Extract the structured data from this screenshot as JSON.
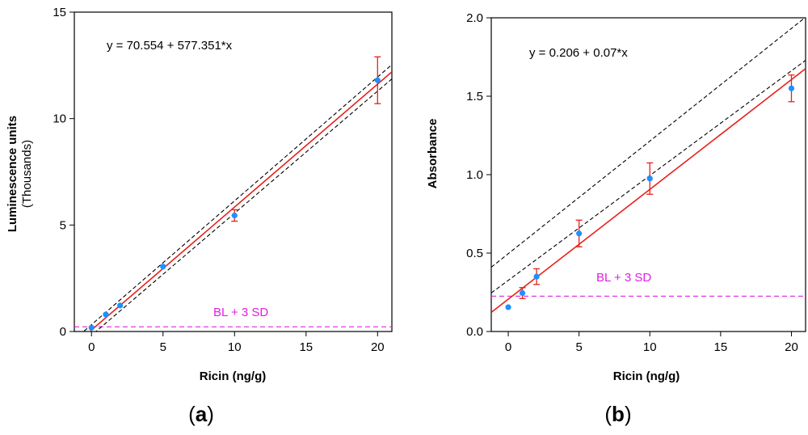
{
  "chart_data": [
    {
      "type": "scatter",
      "panel_label": "a",
      "equation": "y = 70.554 + 577.351*x",
      "xlabel": "Ricin (ng/g)",
      "ylabel": "Luminescence units",
      "ylabel_sub": "(Thousands)",
      "xlim": [
        -1.2,
        21
      ],
      "ylim": [
        0,
        15
      ],
      "xticks": [
        0,
        5,
        10,
        15,
        20
      ],
      "yticks": [
        0,
        5,
        10,
        15
      ],
      "grid": false,
      "points": [
        {
          "x": 0,
          "y": 0.18,
          "err": null
        },
        {
          "x": 1,
          "y": 0.8,
          "err": null
        },
        {
          "x": 2,
          "y": 1.22,
          "err": null
        },
        {
          "x": 5,
          "y": 3.05,
          "err": null
        },
        {
          "x": 10,
          "y": 5.45,
          "err": 0.27
        },
        {
          "x": 20,
          "y": 11.8,
          "err": 1.1
        }
      ],
      "fit": {
        "intercept": 0.070554,
        "slope": 0.577351
      },
      "confidence_band": {
        "upper_offset": 0.25,
        "lower_offset": -0.25,
        "upper_slope": 0.5815,
        "lower_slope": 0.5735
      },
      "baseline": {
        "label": "BL + 3 SD",
        "y": 0.22
      },
      "colors": {
        "points": "#1e90ff",
        "fit": "#e8201a",
        "band": "#000000",
        "baseline": "#e020e0",
        "error_bars": "#e8201a"
      }
    },
    {
      "type": "scatter",
      "panel_label": "b",
      "equation": "y = 0.206 + 0.07*x",
      "xlabel": "Ricin (ng/g)",
      "ylabel": "Absorbance",
      "ylabel_sub": "",
      "xlim": [
        -1.2,
        21
      ],
      "ylim": [
        0,
        2.0
      ],
      "xticks": [
        0,
        5,
        10,
        15,
        20
      ],
      "yticks": [
        0.0,
        0.5,
        1.0,
        1.5,
        2.0
      ],
      "ytick_labels": [
        "0.0",
        "0.5",
        "1.0",
        "1.5",
        "2.0"
      ],
      "grid": false,
      "points": [
        {
          "x": 0,
          "y": 0.155,
          "err": null
        },
        {
          "x": 1,
          "y": 0.245,
          "err": 0.035
        },
        {
          "x": 2,
          "y": 0.35,
          "err": 0.05
        },
        {
          "x": 5,
          "y": 0.625,
          "err": 0.085
        },
        {
          "x": 10,
          "y": 0.975,
          "err": 0.1
        },
        {
          "x": 20,
          "y": 1.55,
          "err": 0.085
        }
      ],
      "fit": {
        "intercept": 0.206,
        "slope": 0.07
      },
      "confidence_band": {
        "upper_offset": 0.29,
        "lower_offset": 0.12,
        "upper_slope": 0.0718,
        "lower_slope": 0.0668
      },
      "baseline": {
        "label": "BL + 3 SD",
        "y": 0.225
      },
      "colors": {
        "points": "#1e90ff",
        "fit": "#e8201a",
        "band": "#000000",
        "baseline": "#e020e0",
        "error_bars": "#e8201a"
      }
    }
  ]
}
